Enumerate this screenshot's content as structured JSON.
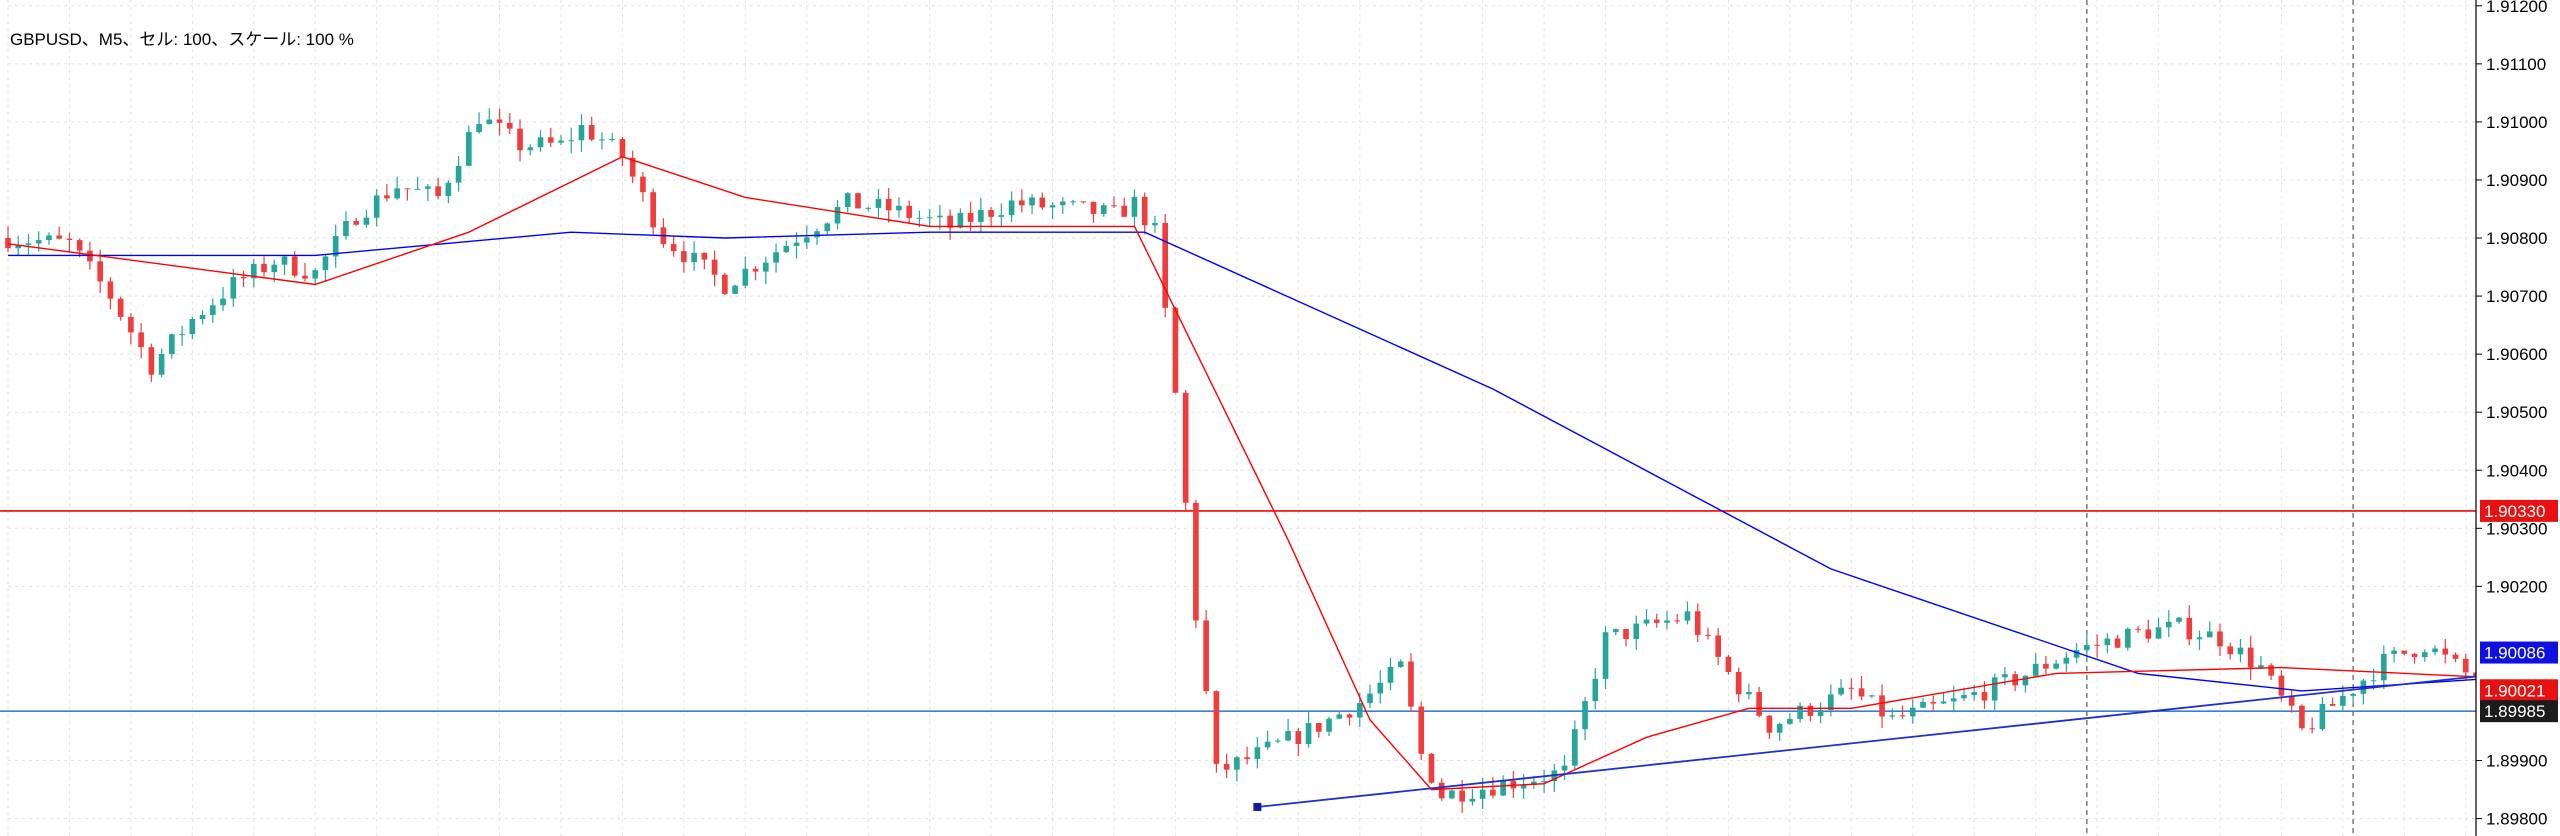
{
  "chart_data": {
    "type": "candlestick",
    "title": "GBPUSD、M5、セル: 100、スケール: 100 %",
    "symbol": "GBPUSD",
    "timeframe": "M5",
    "ylim": [
      1.8977,
      1.9121
    ],
    "y_ticks": [
      "1.91200",
      "1.91100",
      "1.91000",
      "1.90900",
      "1.90800",
      "1.90700",
      "1.90600",
      "1.90500",
      "1.90400",
      "1.90300",
      "1.90200",
      "1.89900",
      "1.89800"
    ],
    "grid": true,
    "candle_count": 242,
    "colors": {
      "up": "#26a69a",
      "down": "#ef3d3d",
      "ma_fast": "#ff0000",
      "ma_slow": "#0000ff",
      "hline_red": "#ff0000",
      "hline_blue": "#3b7ddd",
      "trendline": "#1f2fcf"
    },
    "price_path": [
      [
        0,
        1.908
      ],
      [
        6,
        1.9079
      ],
      [
        10,
        1.907
      ],
      [
        14,
        1.9058
      ],
      [
        18,
        1.9066
      ],
      [
        22,
        1.9072
      ],
      [
        26,
        1.9076
      ],
      [
        30,
        1.9074
      ],
      [
        34,
        1.9084
      ],
      [
        38,
        1.9089
      ],
      [
        42,
        1.9087
      ],
      [
        46,
        1.9101
      ],
      [
        50,
        1.9096
      ],
      [
        54,
        1.9096
      ],
      [
        56,
        1.9099
      ],
      [
        58,
        1.9097
      ],
      [
        60,
        1.9094
      ],
      [
        64,
        1.908
      ],
      [
        70,
        1.9072
      ],
      [
        76,
        1.9079
      ],
      [
        82,
        1.9086
      ],
      [
        86,
        1.9085
      ],
      [
        92,
        1.9082
      ],
      [
        98,
        1.9086
      ],
      [
        104,
        1.9085
      ],
      [
        108,
        1.9084
      ],
      [
        110,
        1.9086
      ],
      [
        112,
        1.9081
      ],
      [
        114,
        1.9053
      ],
      [
        116,
        1.9015
      ],
      [
        118,
        1.8988
      ],
      [
        122,
        1.8991
      ],
      [
        128,
        1.8996
      ],
      [
        132,
        1.9
      ],
      [
        136,
        1.9006
      ],
      [
        138,
        1.8991
      ],
      [
        140,
        1.8984
      ],
      [
        146,
        1.8986
      ],
      [
        152,
        1.8988
      ],
      [
        156,
        1.9011
      ],
      [
        160,
        1.9013
      ],
      [
        164,
        1.9015
      ],
      [
        168,
        1.9005
      ],
      [
        172,
        1.8996
      ],
      [
        176,
        1.8999
      ],
      [
        180,
        1.9002
      ],
      [
        184,
        1.8997
      ],
      [
        190,
        1.9
      ],
      [
        196,
        1.9004
      ],
      [
        202,
        1.9009
      ],
      [
        208,
        1.9012
      ],
      [
        212,
        1.9013
      ],
      [
        216,
        1.9011
      ],
      [
        220,
        1.9006
      ],
      [
        224,
        1.8995
      ],
      [
        228,
        1.9001
      ],
      [
        232,
        1.9007
      ],
      [
        236,
        1.901
      ],
      [
        240,
        1.9005
      ],
      [
        244,
        1.9004
      ],
      [
        248,
        1.9006
      ],
      [
        254,
        1.9007
      ],
      [
        258,
        1.9015
      ],
      [
        264,
        1.9017
      ],
      [
        268,
        1.9015
      ],
      [
        272,
        1.9016
      ],
      [
        276,
        1.9015
      ],
      [
        280,
        1.9016
      ],
      [
        284,
        1.9014
      ],
      [
        290,
        1.9024
      ],
      [
        296,
        1.9018
      ],
      [
        302,
        1.9008
      ],
      [
        308,
        1.9007
      ],
      [
        314,
        1.9009
      ],
      [
        320,
        1.9008
      ],
      [
        326,
        1.9006
      ],
      [
        332,
        1.9007
      ],
      [
        338,
        1.9008
      ],
      [
        344,
        1.9006
      ],
      [
        350,
        1.9008
      ],
      [
        356,
        1.9005
      ],
      [
        362,
        1.9005
      ],
      [
        370,
        1.9003
      ],
      [
        376,
        1.8996
      ],
      [
        380,
        1.8996
      ],
      [
        384,
        1.8995
      ]
    ],
    "ma_fast": [
      [
        0,
        1.9079
      ],
      [
        30,
        1.9072
      ],
      [
        45,
        1.9081
      ],
      [
        60,
        1.9094
      ],
      [
        72,
        1.9087
      ],
      [
        90,
        1.9082
      ],
      [
        110,
        1.9082
      ],
      [
        125,
        1.9028
      ],
      [
        133,
        1.8997
      ],
      [
        139,
        1.8985
      ],
      [
        150,
        1.8986
      ],
      [
        160,
        1.8994
      ],
      [
        170,
        1.8999
      ],
      [
        180,
        1.8999
      ],
      [
        200,
        1.9005
      ],
      [
        222,
        1.9006
      ],
      [
        246,
        1.9004
      ],
      [
        262,
        1.9008
      ],
      [
        290,
        1.9015
      ],
      [
        300,
        1.9014
      ],
      [
        320,
        1.9008
      ],
      [
        350,
        1.9007
      ],
      [
        362,
        1.9006
      ],
      [
        375,
        1.9003
      ],
      [
        384,
        1.9001
      ]
    ],
    "ma_slow": [
      [
        0,
        1.9077
      ],
      [
        30,
        1.9077
      ],
      [
        55,
        1.9081
      ],
      [
        70,
        1.908
      ],
      [
        90,
        1.9081
      ],
      [
        111,
        1.9081
      ],
      [
        145,
        1.9054
      ],
      [
        178,
        1.9023
      ],
      [
        208,
        1.9005
      ],
      [
        224,
        1.9002
      ],
      [
        250,
        1.9005
      ],
      [
        270,
        1.9009
      ],
      [
        300,
        1.9012
      ],
      [
        320,
        1.9011
      ],
      [
        360,
        1.9009
      ],
      [
        384,
        1.9008
      ]
    ],
    "h_lines": [
      {
        "price": 1.9033,
        "label": "1.90330",
        "color": "#ff0000"
      },
      {
        "price": 1.89985,
        "label": "1.89985",
        "color": "#3b7ddd"
      }
    ],
    "price_tags": [
      {
        "price": 1.9033,
        "label": "1.90330",
        "bg": "#e81010"
      },
      {
        "price": 1.90086,
        "label": "1.90086",
        "bg": "#1010e0"
      },
      {
        "price": 1.90021,
        "label": "1.90021",
        "bg": "#e81010"
      },
      {
        "price": 1.89985,
        "label": "1.89985",
        "bg": "#1c1c1c"
      }
    ],
    "trendline": {
      "from": [
        122,
        1.8982
      ],
      "to": [
        355,
        1.9026
      ]
    },
    "v_lines_at": [
      203,
      229
    ]
  }
}
